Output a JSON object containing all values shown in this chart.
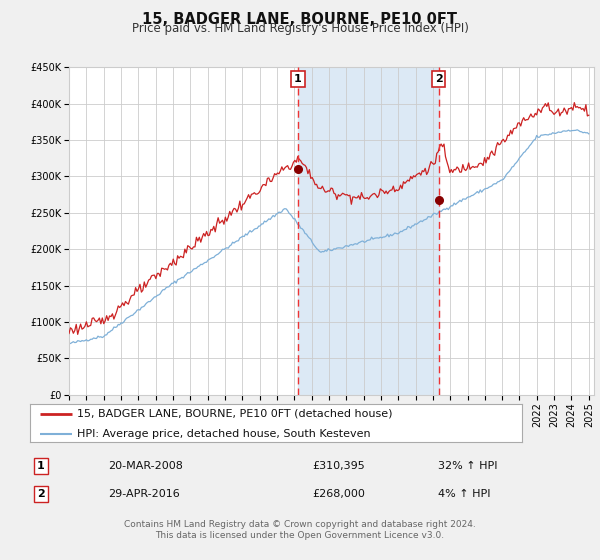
{
  "title": "15, BADGER LANE, BOURNE, PE10 0FT",
  "subtitle": "Price paid vs. HM Land Registry's House Price Index (HPI)",
  "ylim": [
    0,
    450000
  ],
  "xlim_start": 1995.0,
  "xlim_end": 2025.3,
  "yticks": [
    0,
    50000,
    100000,
    150000,
    200000,
    250000,
    300000,
    350000,
    400000,
    450000
  ],
  "ytick_labels": [
    "£0",
    "£50K",
    "£100K",
    "£150K",
    "£200K",
    "£250K",
    "£300K",
    "£350K",
    "£400K",
    "£450K"
  ],
  "xticks": [
    1995,
    1996,
    1997,
    1998,
    1999,
    2000,
    2001,
    2002,
    2003,
    2004,
    2005,
    2006,
    2007,
    2008,
    2009,
    2010,
    2011,
    2012,
    2013,
    2014,
    2015,
    2016,
    2017,
    2018,
    2019,
    2020,
    2021,
    2022,
    2023,
    2024,
    2025
  ],
  "sale1_x": 2008.22,
  "sale1_y": 310395,
  "sale1_label": "1",
  "sale2_x": 2016.33,
  "sale2_y": 268000,
  "sale2_label": "2",
  "red_line_color": "#cc2222",
  "blue_line_color": "#7fb0d8",
  "shade_color": "#dce9f5",
  "vline_color": "#ee3333",
  "dot_color": "#880000",
  "grid_color": "#cccccc",
  "bg_color": "#f0f0f0",
  "plot_bg_color": "#ffffff",
  "legend1_text": "15, BADGER LANE, BOURNE, PE10 0FT (detached house)",
  "legend2_text": "HPI: Average price, detached house, South Kesteven",
  "table_row1": [
    "1",
    "20-MAR-2008",
    "£310,395",
    "32% ↑ HPI"
  ],
  "table_row2": [
    "2",
    "29-APR-2016",
    "£268,000",
    "4% ↑ HPI"
  ],
  "footer1": "Contains HM Land Registry data © Crown copyright and database right 2024.",
  "footer2": "This data is licensed under the Open Government Licence v3.0.",
  "title_fontsize": 10.5,
  "subtitle_fontsize": 8.5,
  "tick_fontsize": 7,
  "legend_fontsize": 8,
  "table_fontsize": 8,
  "footer_fontsize": 6.5
}
